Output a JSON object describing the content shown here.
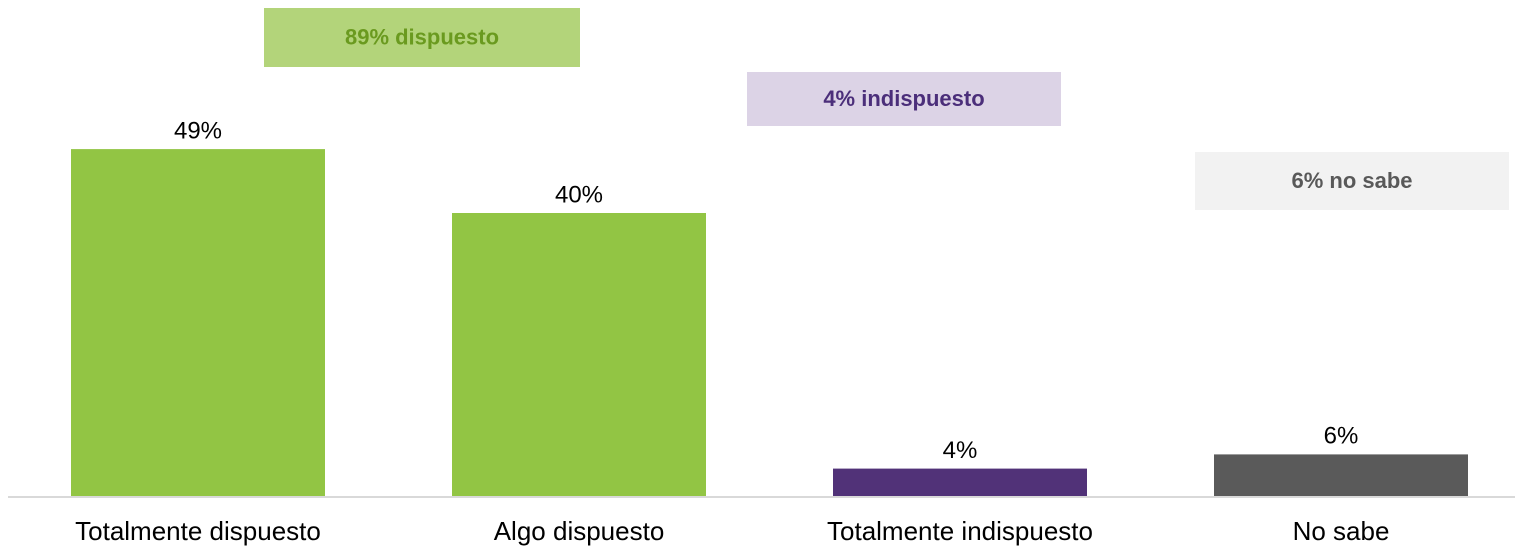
{
  "chart_data": {
    "type": "bar",
    "categories": [
      "Totalmente dispuesto",
      "Algo dispuesto",
      "Totalmente indispuesto",
      "No sabe"
    ],
    "values": [
      49,
      40,
      4,
      6
    ],
    "value_labels": [
      "49%",
      "40%",
      "4%",
      "6%"
    ],
    "colors": [
      "#92c544",
      "#92c544",
      "#513278",
      "#5a5a5a"
    ],
    "ylim": [
      0,
      70
    ],
    "annotations": [
      {
        "text": "89% dispuesto",
        "fill": "#b3d47a",
        "color": "#6a9a1f"
      },
      {
        "text": "4% indispuesto",
        "fill": "#dcd3e6",
        "color": "#4b2e7a"
      },
      {
        "text": "6% no sabe",
        "fill": "#f2f2f2",
        "color": "#595959"
      }
    ]
  }
}
